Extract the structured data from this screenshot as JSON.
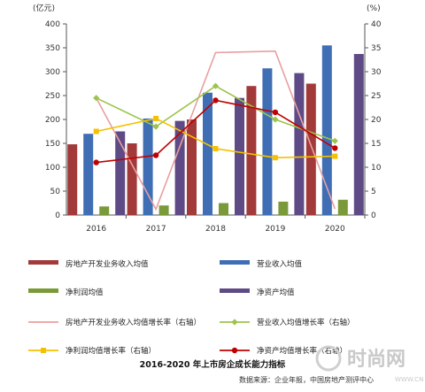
{
  "chart_data": {
    "type": "bar",
    "title": "2016-2020 年上市房企成长能力指标",
    "source": "数据来源：企业年报，中国房地产测评中心",
    "categories": [
      "2016",
      "2017",
      "2018",
      "2019",
      "2020"
    ],
    "y_left": {
      "unit": "(亿元)",
      "lim": [
        0,
        400
      ],
      "ticks": [
        0,
        50,
        100,
        150,
        200,
        250,
        300,
        350,
        400
      ]
    },
    "y_right": {
      "unit": "(%)",
      "lim": [
        0,
        40
      ],
      "ticks": [
        0,
        5,
        10,
        15,
        20,
        25,
        30,
        35,
        40
      ]
    },
    "bar_series": [
      {
        "name": "房地产开发业务收入均值",
        "color": "#a23a3a",
        "values": [
          148,
          150,
          200,
          270,
          275
        ]
      },
      {
        "name": "营业收入均值",
        "color": "#3f6eb5",
        "values": [
          170,
          202,
          256,
          307,
          355
        ]
      },
      {
        "name": "净利润均值",
        "color": "#7a9a3a",
        "values": [
          18,
          20,
          25,
          28,
          32
        ]
      },
      {
        "name": "净资产均值",
        "color": "#5e4a85",
        "values": [
          175,
          197,
          245,
          297,
          337
        ]
      }
    ],
    "line_series": [
      {
        "name": "房地产开发业务收入均值增长率（右轴）",
        "color": "#e8a0a0",
        "marker": "none",
        "values": [
          24.5,
          1.2,
          34.0,
          34.3,
          1.3
        ]
      },
      {
        "name": "营业收入均值增长率（右轴）",
        "color": "#9cc44c",
        "marker": "diamond",
        "values": [
          24.5,
          18.5,
          27.0,
          20.0,
          15.5
        ]
      },
      {
        "name": "净利润均值增长率（右轴）",
        "color": "#f5c000",
        "marker": "square",
        "values": [
          17.5,
          20.2,
          13.9,
          12.0,
          12.3
        ]
      },
      {
        "name": "净资产均值增长率（右轴）",
        "color": "#c00000",
        "marker": "circle",
        "values": [
          11.0,
          12.5,
          24.0,
          21.5,
          14.0
        ]
      }
    ]
  },
  "watermark": {
    "text": "时尚网",
    "domain": "WWW.CN"
  }
}
